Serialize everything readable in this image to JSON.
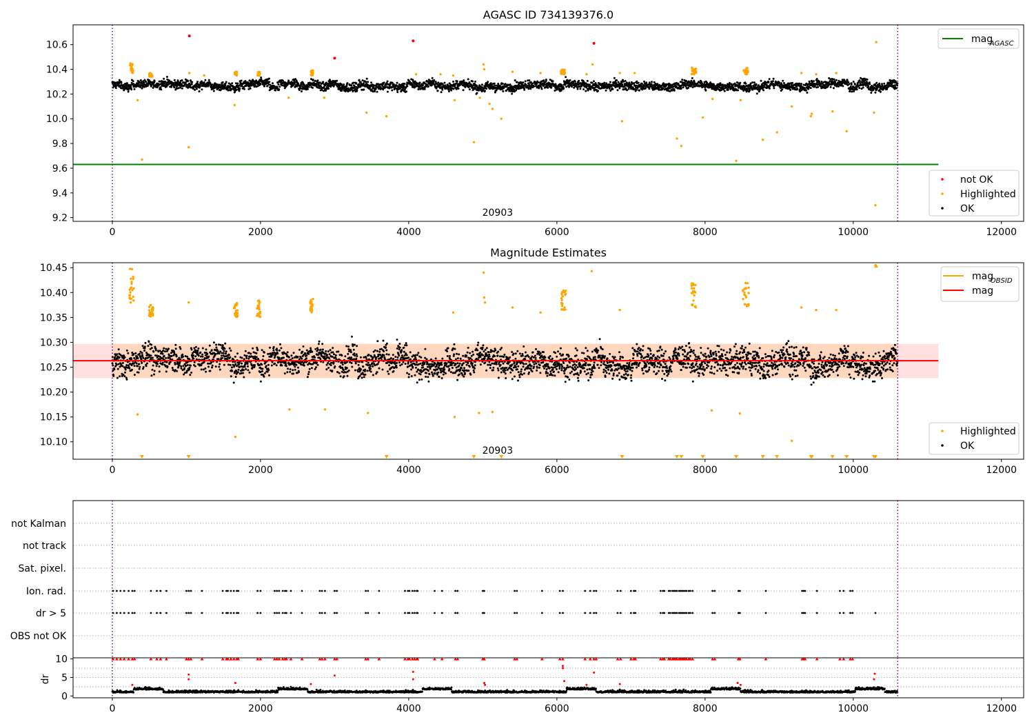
{
  "chart_data": [
    {
      "type": "scatter",
      "title": "AGASC ID 734139376.0",
      "xlim": [
        -530,
        12300
      ],
      "ylim": [
        9.17,
        10.76
      ],
      "xticks": [
        "0",
        "2000",
        "4000",
        "6000",
        "8000",
        "10000",
        "12000"
      ],
      "yticks": [
        "9.2",
        "9.4",
        "9.6",
        "9.8",
        "10.0",
        "10.2",
        "10.4",
        "10.6"
      ],
      "obsid_label": "20903",
      "obsid_label_x": 5200,
      "obsid_bounds": [
        0,
        10600
      ],
      "reference_line": {
        "name": "mag_AGASC",
        "value": 9.63,
        "x_end": 11150,
        "color": "#008000"
      },
      "legend_top": [
        {
          "label": "mag",
          "sub": "AGASC",
          "color": "#008000",
          "kind": "line"
        }
      ],
      "legend_bottom": [
        {
          "label": "not OK",
          "color": "#ff0000",
          "kind": "point"
        },
        {
          "label": "Highlighted",
          "color": "#ffa500",
          "kind": "point"
        },
        {
          "label": "OK",
          "color": "#000000",
          "kind": "point"
        }
      ],
      "series": [
        {
          "name": "OK",
          "color": "#000000",
          "description": "dense band",
          "x_range": [
            0,
            10600
          ],
          "y_center": 10.27,
          "y_spread": 0.035
        },
        {
          "name": "not OK",
          "color": "#ff0000",
          "points": [
            [
              1040,
              10.67
            ],
            [
              3000,
              10.49
            ],
            [
              4060,
              10.63
            ],
            [
              6500,
              10.61
            ]
          ]
        },
        {
          "name": "Highlighted",
          "color": "#ffa500",
          "clusters": [
            [
              240,
              280,
              10.36,
              10.45
            ],
            [
              500,
              540,
              10.34,
              10.37
            ],
            [
              1650,
              1680,
              10.35,
              10.38
            ],
            [
              1960,
              1990,
              10.35,
              10.38
            ],
            [
              2680,
              2710,
              10.35,
              10.39
            ],
            [
              6050,
              6110,
              10.36,
              10.4
            ],
            [
              7820,
              7880,
              10.36,
              10.42
            ],
            [
              8520,
              8580,
              10.36,
              10.42
            ]
          ],
          "points": [
            [
              340,
              10.15
            ],
            [
              400,
              9.67
            ],
            [
              1030,
              9.77
            ],
            [
              1040,
              10.37
            ],
            [
              1240,
              10.35
            ],
            [
              1650,
              10.11
            ],
            [
              2380,
              10.17
            ],
            [
              2860,
              10.17
            ],
            [
              3430,
              10.05
            ],
            [
              3700,
              10.02
            ],
            [
              4100,
              10.36
            ],
            [
              4430,
              10.36
            ],
            [
              4600,
              10.35
            ],
            [
              4620,
              10.15
            ],
            [
              4880,
              9.81
            ],
            [
              4960,
              10.17
            ],
            [
              5010,
              10.44
            ],
            [
              5020,
              10.4
            ],
            [
              5090,
              10.12
            ],
            [
              5130,
              10.08
            ],
            [
              5250,
              10.0
            ],
            [
              5400,
              10.38
            ],
            [
              5780,
              10.37
            ],
            [
              6400,
              10.36
            ],
            [
              6480,
              10.44
            ],
            [
              6850,
              10.37
            ],
            [
              6880,
              9.98
            ],
            [
              7050,
              10.37
            ],
            [
              7620,
              9.84
            ],
            [
              7680,
              9.78
            ],
            [
              7970,
              10.01
            ],
            [
              8100,
              10.16
            ],
            [
              8420,
              9.66
            ],
            [
              8480,
              10.15
            ],
            [
              8780,
              9.83
            ],
            [
              8970,
              9.89
            ],
            [
              9170,
              10.1
            ],
            [
              9300,
              10.37
            ],
            [
              9430,
              10.02
            ],
            [
              9440,
              10.04
            ],
            [
              9500,
              10.36
            ],
            [
              9720,
              10.06
            ],
            [
              9770,
              10.37
            ],
            [
              9910,
              9.9
            ],
            [
              10280,
              10.05
            ],
            [
              10310,
              10.62
            ],
            [
              10300,
              9.3
            ]
          ]
        }
      ]
    },
    {
      "type": "scatter",
      "title": "Magnitude Estimates",
      "xlim": [
        -530,
        12300
      ],
      "ylim": [
        10.065,
        10.46
      ],
      "xticks": [
        "0",
        "2000",
        "4000",
        "6000",
        "8000",
        "10000",
        "12000"
      ],
      "yticks": [
        "10.10",
        "10.15",
        "10.20",
        "10.25",
        "10.30",
        "10.35",
        "10.40",
        "10.45"
      ],
      "obsid_label": "20903",
      "obsid_label_x": 5200,
      "obsid_bounds": [
        0,
        10600
      ],
      "mean_line": {
        "name": "mag",
        "value": 10.263,
        "x_end": 11150,
        "color": "#ff0000"
      },
      "obsid_band": {
        "name": "mag_OBSID",
        "low": 10.228,
        "high": 10.297,
        "color": "#ffa500"
      },
      "legend_top": [
        {
          "label": "mag",
          "sub": "OBSID",
          "color": "#ffa500",
          "kind": "line"
        },
        {
          "label": "mag",
          "color": "#ff0000",
          "kind": "line"
        }
      ],
      "legend_bottom": [
        {
          "label": "Highlighted",
          "color": "#ffa500",
          "kind": "point"
        },
        {
          "label": "OK",
          "color": "#000000",
          "kind": "point"
        }
      ],
      "series": [
        {
          "name": "OK",
          "color": "#000000",
          "description": "dense band",
          "x_range": [
            0,
            10600
          ],
          "y_center": 10.262,
          "y_spread": 0.026
        },
        {
          "name": "Highlighted",
          "color": "#ffa500",
          "clusters": [
            [
              230,
              290,
              10.38,
              10.455
            ],
            [
              490,
              550,
              10.35,
              10.375
            ],
            [
              1640,
              1690,
              10.35,
              10.385
            ],
            [
              1950,
              2000,
              10.35,
              10.385
            ],
            [
              2670,
              2710,
              10.36,
              10.39
            ],
            [
              6060,
              6120,
              10.36,
              10.405
            ],
            [
              7810,
              7880,
              10.37,
              10.42
            ],
            [
              8510,
              8590,
              10.37,
              10.425
            ]
          ],
          "points": [
            [
              340,
              10.155
            ],
            [
              1030,
              10.38
            ],
            [
              1660,
              10.11
            ],
            [
              2390,
              10.165
            ],
            [
              2870,
              10.165
            ],
            [
              3450,
              10.158
            ],
            [
              4600,
              10.36
            ],
            [
              4620,
              10.15
            ],
            [
              4950,
              10.158
            ],
            [
              5010,
              10.44
            ],
            [
              5020,
              10.39
            ],
            [
              5030,
              10.38
            ],
            [
              5130,
              10.16
            ],
            [
              5400,
              10.37
            ],
            [
              5780,
              10.36
            ],
            [
              6470,
              10.443
            ],
            [
              6850,
              10.365
            ],
            [
              8090,
              10.163
            ],
            [
              8470,
              10.157
            ],
            [
              9170,
              10.102
            ],
            [
              9300,
              10.37
            ],
            [
              9500,
              10.365
            ],
            [
              9770,
              10.365
            ],
            [
              10300,
              10.455
            ]
          ]
        },
        {
          "name": "Highlighted (below range)",
          "marker": "triangle-down",
          "color": "#ffa500",
          "x": [
            400,
            1030,
            3700,
            4880,
            5250,
            6880,
            7620,
            7680,
            7970,
            8420,
            8780,
            8970,
            9430,
            9440,
            9720,
            9910,
            10280,
            10300
          ]
        },
        {
          "name": "Highlighted (above range)",
          "marker": "triangle-up",
          "color": "#ffa500",
          "x": [
            10310
          ]
        }
      ]
    },
    {
      "type": "scatter",
      "title": "",
      "xlim": [
        -530,
        12300
      ],
      "flag_rows": [
        "not Kalman",
        "not track",
        "Sat. pixel.",
        "Ion. rad.",
        "dr > 5",
        "OBS not OK"
      ],
      "obsid_bounds": [
        0,
        10600
      ],
      "flag_x": [
        10,
        60,
        110,
        160,
        220,
        270,
        300,
        520,
        600,
        650,
        730,
        1000,
        1030,
        1060,
        1210,
        1490,
        1540,
        1560,
        1600,
        1640,
        1680,
        1700,
        1960,
        2000,
        2190,
        2220,
        2250,
        2300,
        2330,
        2350,
        2410,
        2560,
        2800,
        2830,
        2870,
        3000,
        3030,
        3420,
        3450,
        3600,
        3950,
        3990,
        4010,
        4050,
        4080,
        4110,
        4120,
        4350,
        4450,
        4630,
        4660,
        5000,
        5020,
        5430,
        5460,
        5800,
        6040,
        6080,
        6380,
        6450,
        6500,
        6530,
        6820,
        6860,
        7000,
        7040,
        7060,
        7400,
        7430,
        7450,
        7510,
        7530,
        7560,
        7580,
        7600,
        7620,
        7650,
        7670,
        7690,
        7710,
        7730,
        7750,
        7780,
        7800,
        7830,
        8100,
        8130,
        8450,
        8470,
        8820,
        9310,
        9330,
        9350,
        9510,
        9820,
        9870,
        9960,
        9990
      ],
      "dr_panel": {
        "ylabel": "dr",
        "ylim": [
          -0.5,
          10.3
        ],
        "yticks": [
          "0",
          "5",
          "10"
        ],
        "description": "dr values mostly between 0 and 2.5, capped points at 10 in red",
        "red_points": [
          [
            270,
            3.0
          ],
          [
            1030,
            4.5
          ],
          [
            1030,
            5.8
          ],
          [
            1660,
            3.5
          ],
          [
            2680,
            3.2
          ],
          [
            3000,
            5.5
          ],
          [
            4060,
            4.5
          ],
          [
            4060,
            6.5
          ],
          [
            5020,
            3.5
          ],
          [
            5030,
            3.0
          ],
          [
            6080,
            7.5
          ],
          [
            6080,
            8.1
          ],
          [
            6100,
            4.0
          ],
          [
            6400,
            3.0
          ],
          [
            6500,
            6.3
          ],
          [
            6850,
            3.2
          ],
          [
            8440,
            3.5
          ],
          [
            8480,
            3.0
          ],
          [
            10280,
            4.5
          ],
          [
            10290,
            6.0
          ]
        ]
      }
    }
  ]
}
